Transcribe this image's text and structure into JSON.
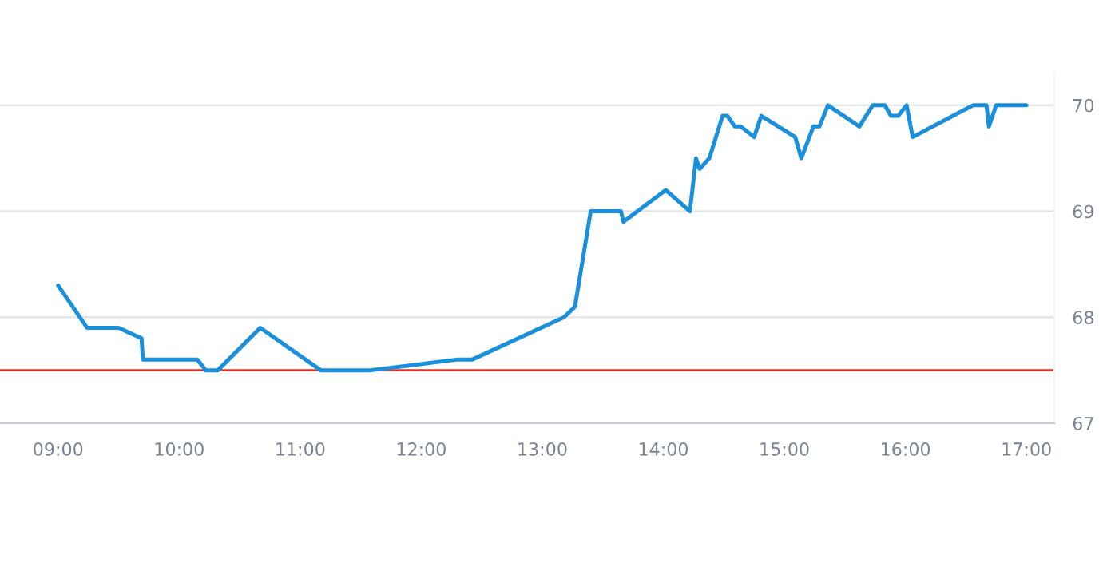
{
  "chart_data": {
    "type": "line",
    "x": [
      9.0,
      9.24,
      9.5,
      9.69,
      9.7,
      10.15,
      10.22,
      10.32,
      10.67,
      11.17,
      11.58,
      12.29,
      12.42,
      13.18,
      13.27,
      13.4,
      13.65,
      13.67,
      14.02,
      14.22,
      14.27,
      14.3,
      14.38,
      14.49,
      14.53,
      14.59,
      14.64,
      14.75,
      14.81,
      15.09,
      15.14,
      15.24,
      15.29,
      15.36,
      15.62,
      15.73,
      15.83,
      15.88,
      15.94,
      16.01,
      16.06,
      16.56,
      16.67,
      16.69,
      16.75,
      17.0
    ],
    "series": [
      {
        "color": "#1a8fdb",
        "values": [
          68.3,
          67.9,
          67.9,
          67.8,
          67.6,
          67.6,
          67.5,
          67.5,
          67.9,
          67.5,
          67.5,
          67.6,
          67.6,
          68.0,
          68.1,
          69.0,
          69.0,
          68.9,
          69.2,
          69.0,
          69.5,
          69.4,
          69.5,
          69.9,
          69.9,
          69.8,
          69.8,
          69.7,
          69.9,
          69.7,
          69.5,
          69.8,
          69.8,
          70.0,
          69.8,
          70.0,
          70.0,
          69.9,
          69.9,
          70.0,
          69.7,
          70.0,
          70.0,
          69.8,
          70.0,
          70.0
        ]
      }
    ],
    "xlim": [
      8.52,
      17.23
    ],
    "xticks": [
      {
        "value": 9,
        "label": "09:00"
      },
      {
        "value": 10,
        "label": "10:00"
      },
      {
        "value": 11,
        "label": "11:00"
      },
      {
        "value": 12,
        "label": "12:00"
      },
      {
        "value": 13,
        "label": "13:00"
      },
      {
        "value": 14,
        "label": "14:00"
      },
      {
        "value": 15,
        "label": "15:00"
      },
      {
        "value": 16,
        "label": "16:00"
      },
      {
        "value": 17,
        "label": "17:00"
      }
    ],
    "ylim": [
      67,
      70.3
    ],
    "yticks": [
      67,
      68,
      69,
      70
    ],
    "grid": "y",
    "line_style": "solid",
    "ref_lines": [
      {
        "axis": "y",
        "value": 67.5,
        "color": "#d9362b"
      }
    ]
  }
}
